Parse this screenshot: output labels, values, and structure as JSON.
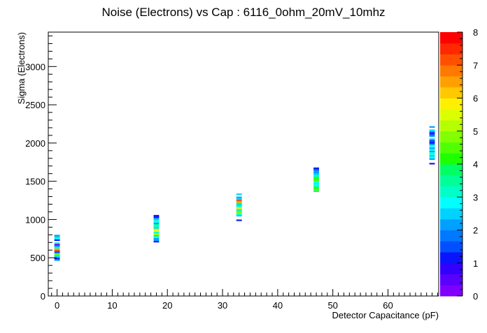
{
  "chart_data": {
    "type": "heatmap",
    "title": "Noise (Electrons) vs Cap : 6116_0ohm_20mV_10mhz",
    "xlabel": "Detector Capacitance (pF)",
    "ylabel": "Sigma (Electrons)",
    "xlim": [
      -1.6,
      69.2
    ],
    "ylim": [
      0,
      3450
    ],
    "x_ticks": [
      0,
      10,
      20,
      30,
      40,
      50,
      60
    ],
    "y_ticks": [
      0,
      500,
      1000,
      1500,
      2000,
      2500,
      3000
    ],
    "colorbar": {
      "min": 0,
      "max": 8,
      "ticks": [
        0,
        1,
        2,
        3,
        4,
        5,
        6,
        7,
        8
      ],
      "palette": [
        "#7f00ff",
        "#5a00ff",
        "#3200ff",
        "#0a14ff",
        "#0050ff",
        "#0078ff",
        "#00a0ff",
        "#00d2ff",
        "#00ffff",
        "#00ffc8",
        "#00ff96",
        "#00ff64",
        "#1eff00",
        "#50ff00",
        "#82ff00",
        "#b4ff00",
        "#dcff00",
        "#fff000",
        "#ffc800",
        "#ffa000",
        "#ff7800",
        "#ff5000",
        "#ff2800",
        "#ff0000"
      ]
    },
    "grid": false,
    "bin_width_pF": 1,
    "bin_height_electrons": 20,
    "series": [
      {
        "x": 0,
        "cells": [
          [
            470,
            2
          ],
          [
            490,
            1.3
          ],
          [
            510,
            2.6
          ],
          [
            530,
            3.4
          ],
          [
            550,
            4.6
          ],
          [
            570,
            1.6
          ],
          [
            590,
            7.6
          ],
          [
            610,
            6.4
          ],
          [
            630,
            3.1
          ],
          [
            650,
            2.2
          ],
          [
            670,
            0.6
          ],
          [
            690,
            3.0
          ],
          [
            730,
            1.0
          ],
          [
            750,
            2.7
          ],
          [
            770,
            2.4
          ],
          [
            790,
            2.0
          ]
        ]
      },
      {
        "x": 18,
        "cells": [
          [
            710,
            1.1
          ],
          [
            730,
            2.0
          ],
          [
            750,
            2.3
          ],
          [
            770,
            2.7
          ],
          [
            790,
            4.2
          ],
          [
            810,
            5.3
          ],
          [
            830,
            3.0
          ],
          [
            850,
            5.8
          ],
          [
            870,
            5.0
          ],
          [
            890,
            2.5
          ],
          [
            910,
            3.0
          ],
          [
            930,
            3.5
          ],
          [
            950,
            2.2
          ],
          [
            970,
            2.9
          ],
          [
            990,
            3.0
          ],
          [
            1010,
            2.3
          ],
          [
            1030,
            1.0
          ],
          [
            1050,
            1.2
          ]
        ]
      },
      {
        "x": 33,
        "cells": [
          [
            990,
            1.0
          ],
          [
            1050,
            2.5
          ],
          [
            1070,
            3.2
          ],
          [
            1090,
            4.7
          ],
          [
            1110,
            3.6
          ],
          [
            1130,
            3.1
          ],
          [
            1150,
            5.7
          ],
          [
            1170,
            3.0
          ],
          [
            1190,
            2.5
          ],
          [
            1210,
            3.8
          ],
          [
            1230,
            6.4
          ],
          [
            1250,
            7.1
          ],
          [
            1270,
            2.5
          ],
          [
            1290,
            2.2
          ],
          [
            1330,
            2.4
          ]
        ]
      },
      {
        "x": 47,
        "cells": [
          [
            1370,
            3.4
          ],
          [
            1390,
            4.6
          ],
          [
            1410,
            4.2
          ],
          [
            1430,
            3.6
          ],
          [
            1450,
            2.9
          ],
          [
            1470,
            3.3
          ],
          [
            1490,
            2.7
          ],
          [
            1510,
            4.5
          ],
          [
            1530,
            4.3
          ],
          [
            1550,
            3.9
          ],
          [
            1570,
            3.2
          ],
          [
            1590,
            2.5
          ],
          [
            1610,
            2.0
          ],
          [
            1630,
            2.1
          ],
          [
            1650,
            1.5
          ],
          [
            1670,
            1.2
          ]
        ]
      },
      {
        "x": 68,
        "cells": [
          [
            1730,
            1.2
          ],
          [
            1790,
            2.3
          ],
          [
            1810,
            2.8
          ],
          [
            1830,
            2.5
          ],
          [
            1850,
            3.3
          ],
          [
            1870,
            2.9
          ],
          [
            1890,
            2.2
          ],
          [
            1910,
            2.7
          ],
          [
            1930,
            2.0
          ],
          [
            1950,
            2.8
          ],
          [
            1970,
            3.0
          ],
          [
            1990,
            1.6
          ],
          [
            2010,
            1.2
          ],
          [
            2030,
            1.4
          ],
          [
            2050,
            2.6
          ],
          [
            2090,
            2.0
          ],
          [
            2110,
            1.4
          ],
          [
            2130,
            0.9
          ],
          [
            2150,
            2.2
          ],
          [
            2170,
            2.8
          ],
          [
            2210,
            2.1
          ]
        ]
      }
    ]
  }
}
